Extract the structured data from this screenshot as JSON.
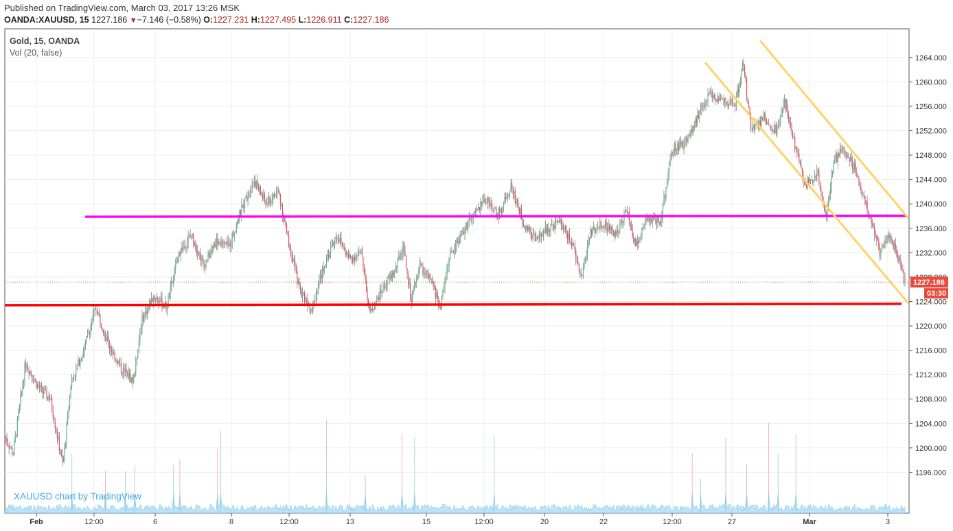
{
  "header": {
    "published": "Published on TradingView.com, March 03, 2017 13:26 MSK",
    "symbol": "OANDA:XAUUSD, 15",
    "last": "1227.186",
    "arrow": "▼",
    "change": "−7.146 (−0.58%)",
    "o_label": "O:",
    "o_value": "1227.231",
    "h_label": "H:",
    "h_value": "1227.495",
    "l_label": "L:",
    "l_value": "1226.911",
    "c_label": "C:",
    "c_value": "1227.186"
  },
  "legend": {
    "title": "Gold, 15, OANDA",
    "indicator": "Vol (20, false)"
  },
  "watermark": "XAUUSD chart by TradingView",
  "colors": {
    "up": "#53b987",
    "down": "#eb4d5c",
    "support": "#ff0000",
    "resistance": "#ff00ff",
    "channel": "#fdd36a",
    "price_tag": "#e74c3c",
    "volume": "#8fd0f2"
  },
  "chart_data": {
    "type": "candlestick",
    "title": "Gold, 15, OANDA",
    "xlabel": "",
    "ylabel": "",
    "ylim": [
      1192,
      1268
    ],
    "price_axis_ticks": [
      "1196.000",
      "1200.000",
      "1204.000",
      "1208.000",
      "1212.000",
      "1216.000",
      "1220.000",
      "1224.000",
      "1228.000",
      "1232.000",
      "1236.000",
      "1240.000",
      "1244.000",
      "1248.000",
      "1252.000",
      "1256.000",
      "1260.000",
      "1264.000"
    ],
    "time_axis_ticks": [
      "Feb",
      "12:00",
      "6",
      "8",
      "12:00",
      "13",
      "15",
      "12:00",
      "20",
      "22",
      "12:00",
      "27",
      "Mar",
      "3"
    ],
    "last_price": 1227.186,
    "last_price_label": "1227.186",
    "countdown_label": "03:30",
    "price_path": [
      {
        "t": 0,
        "p": 1202
      },
      {
        "t": 2,
        "p": 1199
      },
      {
        "t": 5,
        "p": 1214
      },
      {
        "t": 8,
        "p": 1210
      },
      {
        "t": 11,
        "p": 1208
      },
      {
        "t": 14,
        "p": 1197
      },
      {
        "t": 16,
        "p": 1211
      },
      {
        "t": 19,
        "p": 1216
      },
      {
        "t": 22,
        "p": 1223
      },
      {
        "t": 25,
        "p": 1217
      },
      {
        "t": 28,
        "p": 1213
      },
      {
        "t": 31,
        "p": 1211
      },
      {
        "t": 33,
        "p": 1221
      },
      {
        "t": 36,
        "p": 1225
      },
      {
        "t": 39,
        "p": 1223
      },
      {
        "t": 42,
        "p": 1232
      },
      {
        "t": 45,
        "p": 1235
      },
      {
        "t": 48,
        "p": 1230
      },
      {
        "t": 51,
        "p": 1234
      },
      {
        "t": 54,
        "p": 1233
      },
      {
        "t": 57,
        "p": 1239
      },
      {
        "t": 60,
        "p": 1244
      },
      {
        "t": 63,
        "p": 1240
      },
      {
        "t": 66,
        "p": 1242
      },
      {
        "t": 68,
        "p": 1235
      },
      {
        "t": 71,
        "p": 1226
      },
      {
        "t": 74,
        "p": 1223
      },
      {
        "t": 77,
        "p": 1230
      },
      {
        "t": 80,
        "p": 1235
      },
      {
        "t": 83,
        "p": 1231
      },
      {
        "t": 86,
        "p": 1232
      },
      {
        "t": 88,
        "p": 1222
      },
      {
        "t": 91,
        "p": 1226
      },
      {
        "t": 94,
        "p": 1229
      },
      {
        "t": 96,
        "p": 1233
      },
      {
        "t": 98,
        "p": 1224
      },
      {
        "t": 100,
        "p": 1230
      },
      {
        "t": 103,
        "p": 1227
      },
      {
        "t": 105,
        "p": 1223
      },
      {
        "t": 107,
        "p": 1231
      },
      {
        "t": 110,
        "p": 1235
      },
      {
        "t": 113,
        "p": 1238
      },
      {
        "t": 116,
        "p": 1241
      },
      {
        "t": 119,
        "p": 1238
      },
      {
        "t": 122,
        "p": 1243
      },
      {
        "t": 125,
        "p": 1237
      },
      {
        "t": 128,
        "p": 1234
      },
      {
        "t": 131,
        "p": 1236
      },
      {
        "t": 134,
        "p": 1237
      },
      {
        "t": 137,
        "p": 1233
      },
      {
        "t": 139,
        "p": 1228
      },
      {
        "t": 141,
        "p": 1235
      },
      {
        "t": 144,
        "p": 1237
      },
      {
        "t": 147,
        "p": 1235
      },
      {
        "t": 150,
        "p": 1239
      },
      {
        "t": 152,
        "p": 1233
      },
      {
        "t": 155,
        "p": 1238
      },
      {
        "t": 158,
        "p": 1237
      },
      {
        "t": 161,
        "p": 1249
      },
      {
        "t": 164,
        "p": 1250
      },
      {
        "t": 167,
        "p": 1254
      },
      {
        "t": 170,
        "p": 1258
      },
      {
        "t": 173,
        "p": 1257
      },
      {
        "t": 176,
        "p": 1256
      },
      {
        "t": 178,
        "p": 1263
      },
      {
        "t": 180,
        "p": 1252
      },
      {
        "t": 183,
        "p": 1254
      },
      {
        "t": 186,
        "p": 1252
      },
      {
        "t": 188,
        "p": 1257
      },
      {
        "t": 191,
        "p": 1248
      },
      {
        "t": 193,
        "p": 1243
      },
      {
        "t": 196,
        "p": 1245
      },
      {
        "t": 198,
        "p": 1238
      },
      {
        "t": 200,
        "p": 1247
      },
      {
        "t": 202,
        "p": 1249
      },
      {
        "t": 205,
        "p": 1246
      },
      {
        "t": 207,
        "p": 1241
      },
      {
        "t": 209,
        "p": 1237
      },
      {
        "t": 211,
        "p": 1232
      },
      {
        "t": 213,
        "p": 1235
      },
      {
        "t": 215,
        "p": 1232
      },
      {
        "t": 217,
        "p": 1227.186
      }
    ],
    "drawings": {
      "support_level": 1223.5,
      "resistance_level": 1238,
      "channel_upper": [
        {
          "t": 179,
          "p": 1266
        },
        {
          "t": 217,
          "p": 1238
        }
      ],
      "channel_lower": [
        {
          "t": 166,
          "p": 1263
        },
        {
          "t": 217,
          "p": 1225
        }
      ]
    }
  }
}
